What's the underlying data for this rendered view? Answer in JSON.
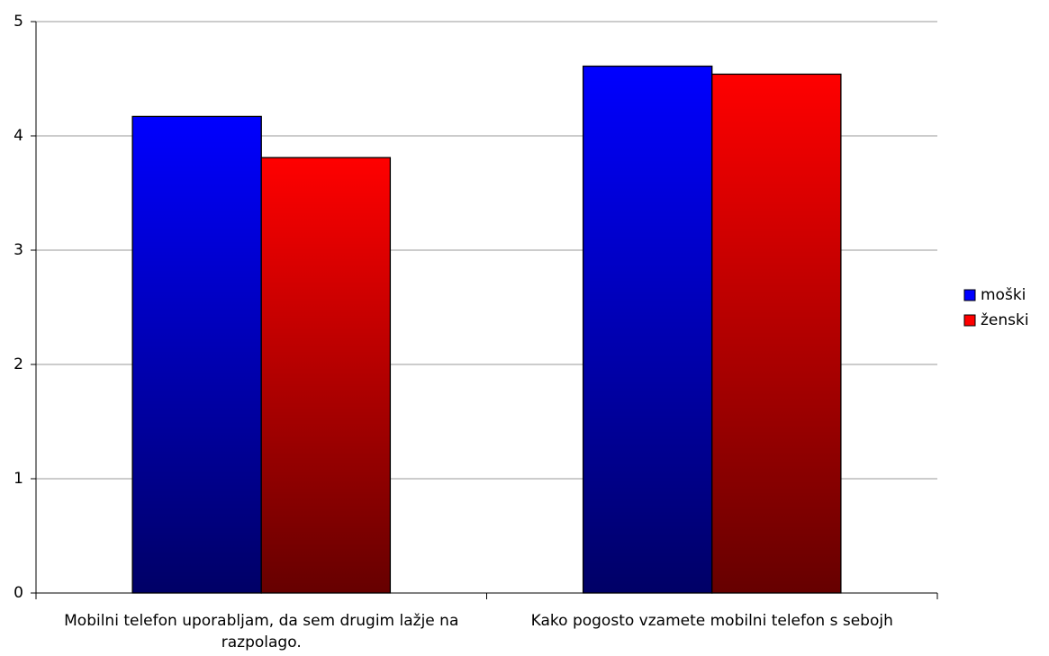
{
  "chart_data": {
    "type": "bar",
    "categories": [
      "Mobilni telefon uporabljam, da sem drugim lažje na razpolago.",
      "Kako pogosto vzamete mobilni telefon s sebojh"
    ],
    "series": [
      {
        "name": "moški",
        "color": "#0000ff",
        "values": [
          4.17,
          4.61
        ]
      },
      {
        "name": "ženski",
        "color": "#ff0000",
        "values": [
          3.81,
          4.54
        ]
      }
    ],
    "ylim": [
      0,
      5
    ],
    "yticks": [
      0,
      1,
      2,
      3,
      4,
      5
    ],
    "grid": true,
    "legend": "right"
  }
}
